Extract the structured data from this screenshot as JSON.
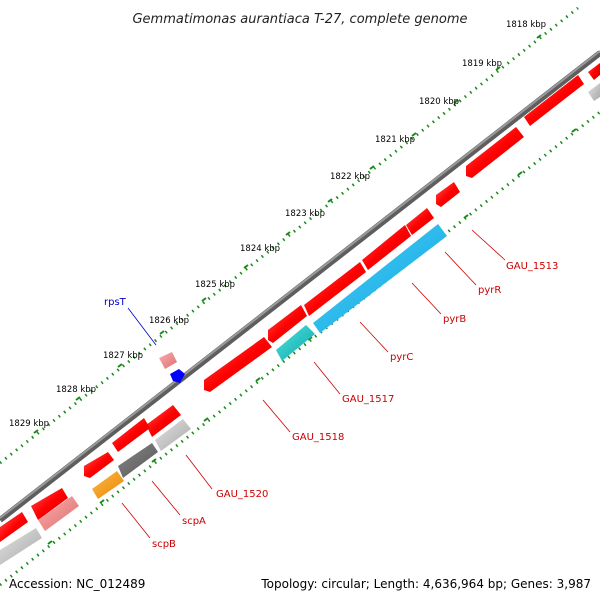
{
  "title": "Gemmatimonas aurantiaca T-27, complete genome",
  "accession": "Accession: NC_012489",
  "topology": "Topology: circular; Length: 4,636,964 bp; Genes: 3,987",
  "colors": {
    "backbone": "#7f7f7f",
    "tick": "#1a8a1a",
    "cds": "#ff0000",
    "cds_light": "#f08080",
    "cds_gray": "#c8c8c8",
    "cds_dark": "#707070",
    "cds_orange": "#ff9900",
    "cds_teal": "#22c4c4",
    "cds_cyan": "#12b8e8",
    "rna_blue": "#0000ff",
    "label_red": "#cc0000",
    "label_blue": "#0000cc"
  },
  "kbp_labels": [
    "1818 kbp",
    "1819 kbp",
    "1820 kbp",
    "1821 kbp",
    "1822 kbp",
    "1823 kbp",
    "1824 kbp",
    "1825 kbp",
    "1826 kbp",
    "1827 kbp",
    "1828 kbp",
    "1829 kbp"
  ],
  "gene_labels": [
    "GAU_1513",
    "pyrR",
    "pyrB",
    "pyrC",
    "GAU_1517",
    "GAU_1518",
    "GAU_1520",
    "scpA",
    "scpB",
    "rpsT"
  ]
}
